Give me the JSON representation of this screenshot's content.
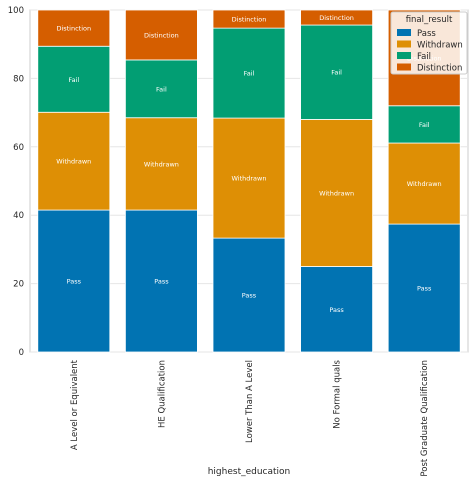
{
  "chart_data": {
    "type": "bar",
    "stacked": true,
    "categories": [
      "A Level or Equivalent",
      "HE Qualification",
      "Lower Than A Level",
      "No Formal quals",
      "Post Graduate Qualification"
    ],
    "series": [
      {
        "name": "Pass",
        "color": "#0173b2",
        "values": [
          41.5,
          41.5,
          33.3,
          25.0,
          37.4
        ]
      },
      {
        "name": "Withdrawn",
        "color": "#de8f05",
        "values": [
          28.6,
          27.0,
          35.1,
          43.0,
          23.7
        ]
      },
      {
        "name": "Fail",
        "color": "#029e73",
        "values": [
          19.3,
          16.9,
          26.3,
          27.6,
          10.9
        ]
      },
      {
        "name": "Distinction",
        "color": "#d55e00",
        "values": [
          10.6,
          14.6,
          5.3,
          4.4,
          28.0
        ]
      }
    ],
    "xlabel": "highest_education",
    "ylabel": "",
    "ylim": [
      0,
      100
    ],
    "yticks": [
      0,
      20,
      40,
      60,
      80,
      100
    ],
    "grid": true,
    "legend": {
      "title": "final_result",
      "placement": "top-right"
    }
  }
}
